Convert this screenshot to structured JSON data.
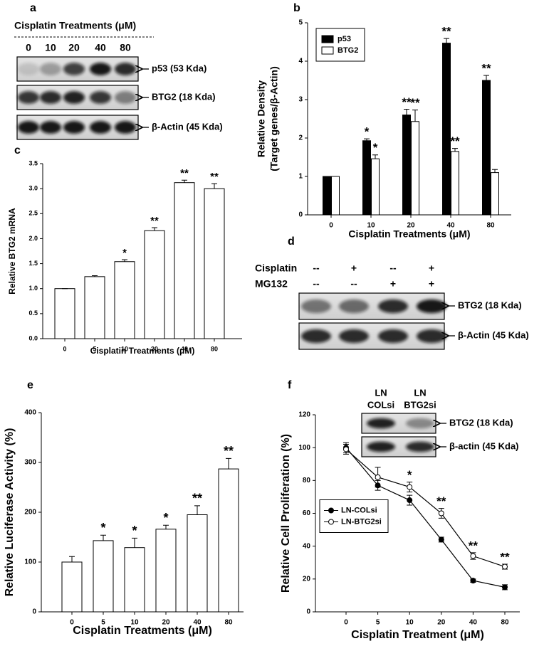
{
  "blot_a": {
    "panel": "a",
    "title": "Cisplatin Treatments (μM)",
    "lanes": [
      "0",
      "10",
      "20",
      "40",
      "80"
    ],
    "bands": [
      "p53 (53 Kda)",
      "BTG2 (18 Kda)",
      "β-Actin (45 Kda)"
    ]
  },
  "blot_d": {
    "panel": "d",
    "rows": [
      {
        "label": "Cisplatin",
        "signs": [
          "--",
          "+",
          "--",
          "+"
        ]
      },
      {
        "label": "MG132",
        "signs": [
          "--",
          "--",
          "+",
          "+"
        ]
      }
    ],
    "bands": [
      "BTG2 (18 Kda)",
      "β-Actin (45 Kda)"
    ]
  },
  "blot_f": {
    "lanes": [
      [
        "LN",
        "COLsi"
      ],
      [
        "LN",
        "BTG2si"
      ]
    ],
    "bands": [
      "BTG2 (18 Kda)",
      "β-actin (45 Kda)"
    ]
  },
  "chart_data": [
    {
      "type": "bar",
      "panel": "b",
      "categories": [
        "0",
        "10",
        "20",
        "40",
        "80"
      ],
      "series": [
        {
          "name": "p53",
          "color": "#000000",
          "values": [
            1,
            1.93,
            2.6,
            4.47,
            3.5
          ],
          "errors": [
            0,
            0.05,
            0.15,
            0.12,
            0.13
          ],
          "annotations": [
            null,
            "*",
            "**",
            "**",
            "**"
          ]
        },
        {
          "name": "BTG2",
          "color": "#ffffff",
          "values": [
            1,
            1.46,
            2.43,
            1.65,
            1.1
          ],
          "errors": [
            0,
            0.1,
            0.3,
            0.08,
            0.08
          ],
          "annotations": [
            null,
            "*",
            "**",
            "**",
            null
          ]
        }
      ],
      "ylim": [
        0,
        5
      ],
      "yticks": [
        0,
        1,
        2,
        3,
        4,
        5
      ],
      "xlabel": "Cisplatin Treatments (μM)",
      "ylabel": [
        "Relative Density",
        "(Target genes/β-Actin)"
      ],
      "legend": "upper left"
    },
    {
      "type": "bar",
      "panel": "c",
      "categories": [
        "0",
        "5",
        "10",
        "20",
        "40",
        "80"
      ],
      "values": [
        1,
        1.24,
        1.54,
        2.16,
        3.12,
        3.0
      ],
      "errors": [
        0,
        0.02,
        0.04,
        0.06,
        0.05,
        0.1
      ],
      "annotations": [
        null,
        null,
        "*",
        "**",
        "**",
        "**"
      ],
      "color": "#ffffff",
      "ylim": [
        0,
        3.5
      ],
      "yticks": [
        {
          "value": 0,
          "label": "0.0"
        },
        0.5,
        {
          "value": 1,
          "label": "1.0"
        },
        1.5,
        {
          "value": 2,
          "label": "2.0"
        },
        2.5,
        {
          "value": 3,
          "label": "3.0"
        },
        3.5
      ],
      "xlabel": "Cisplatin Treatments (μM)",
      "ylabel": [
        "Relative BTG2 mRNA"
      ]
    },
    {
      "type": "bar",
      "panel": "e",
      "categories": [
        "0",
        "5",
        "10",
        "20",
        "40",
        "80"
      ],
      "values": [
        100,
        143,
        129,
        166,
        195,
        287
      ],
      "errors": [
        11,
        11,
        19,
        8,
        18,
        21
      ],
      "annotations": [
        null,
        "*",
        "*",
        "*",
        "**",
        "**"
      ],
      "color": "#ffffff",
      "ylim": [
        0,
        400
      ],
      "yticks": [
        0,
        100,
        200,
        300,
        400
      ],
      "xlabel": "Cisplatin Treatments (μM)",
      "ylabel": [
        "Relative  Luciferase  Activity (%)"
      ]
    },
    {
      "type": "line",
      "panel": "f",
      "categories": [
        "0",
        "5",
        "10",
        "20",
        "40",
        "80"
      ],
      "series": [
        {
          "name": "LN-COLsi",
          "color": "#000000",
          "values": [
            100,
            77,
            68,
            44,
            19,
            15
          ],
          "errors": [
            3,
            3,
            3,
            1.5,
            1,
            1.5
          ]
        },
        {
          "name": "LN-BTG2si",
          "color": "#ffffff",
          "values": [
            99,
            82,
            76,
            60,
            34,
            27.5
          ],
          "errors": [
            3,
            6,
            3,
            3,
            2,
            1.5
          ],
          "annotations": [
            null,
            null,
            "*",
            "**",
            "**",
            "**"
          ]
        }
      ],
      "ylim": [
        0,
        120
      ],
      "yticks": [
        0,
        20,
        40,
        60,
        80,
        100,
        120
      ],
      "xlabel": "Cisplatin Treatment (μM)",
      "ylabel": [
        "Relative Cell Proliferation (%)"
      ],
      "legend": "center left"
    }
  ]
}
